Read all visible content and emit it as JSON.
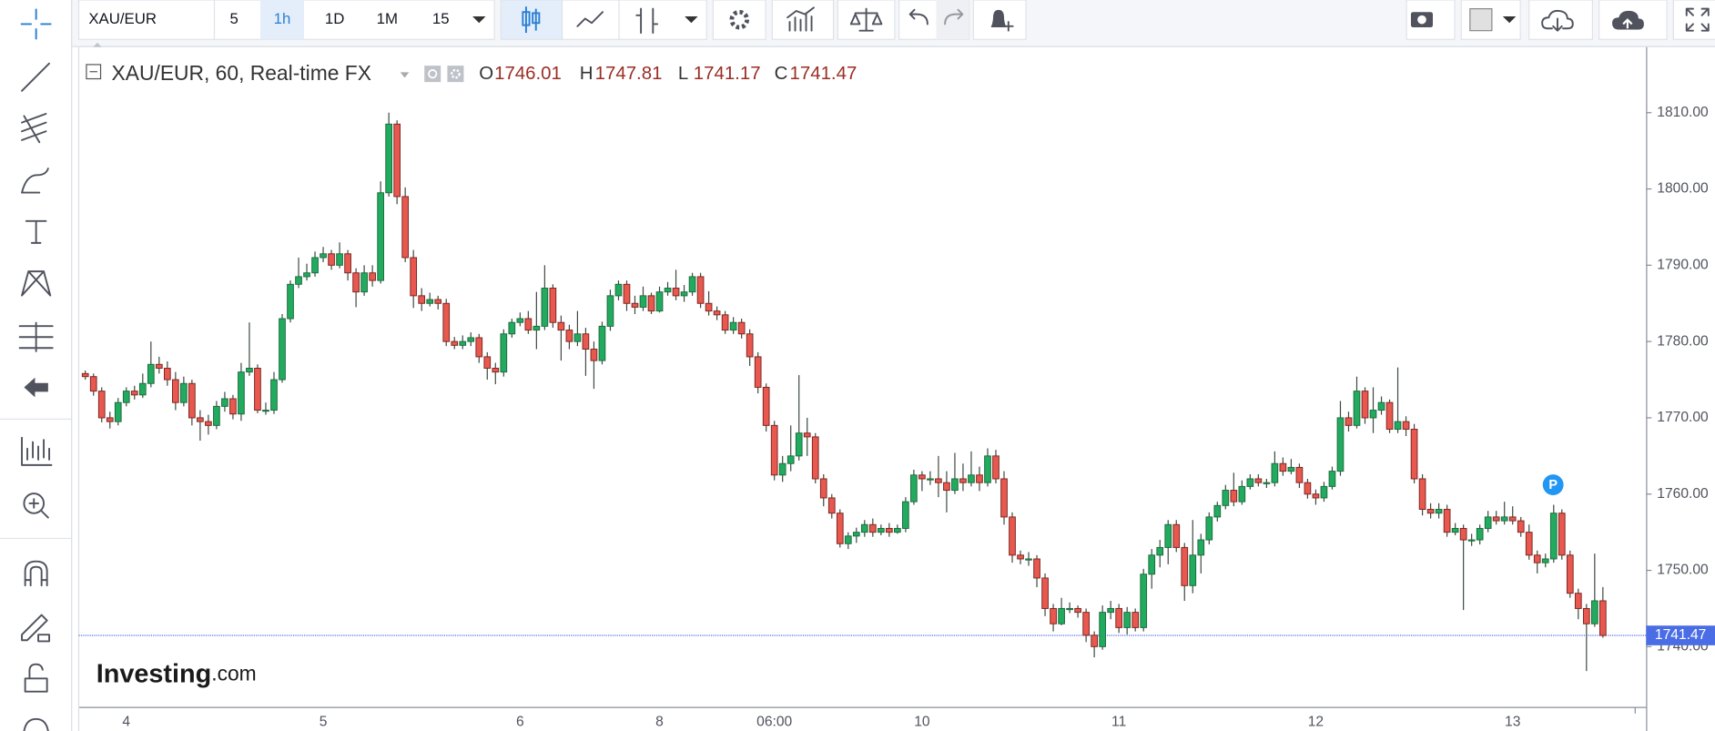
{
  "toolbar": {
    "symbol": "XAU/EUR",
    "intervals": [
      "5",
      "1h",
      "1D",
      "1M",
      "15"
    ]
  },
  "logo": {
    "main": "Investing",
    "suffix": ".com"
  },
  "marker_label": "P",
  "chart_data": {
    "type": "candlestick",
    "title": "XAU/EUR, 60, Real-time FX",
    "ohlc_labels": [
      "O",
      "H",
      "L",
      "C"
    ],
    "up_color": "#22ab5e",
    "down_color": "#e8584f",
    "last_price_color": "#4a6de5",
    "ylim": [
      1732.1,
      1818.6
    ],
    "yticks": [
      {
        "value": 1740,
        "label": "1740.00"
      },
      {
        "value": 1750,
        "label": "1750.00"
      },
      {
        "value": 1760,
        "label": "1760.00"
      },
      {
        "value": 1770,
        "label": "1770.00"
      },
      {
        "value": 1780,
        "label": "1780.00"
      },
      {
        "value": 1790,
        "label": "1790.00"
      },
      {
        "value": 1800,
        "label": "1800.00"
      },
      {
        "value": 1810,
        "label": "1810.00"
      }
    ],
    "grid": false,
    "categories": [
      null,
      null,
      null,
      null,
      null,
      "4",
      null,
      null,
      null,
      null,
      null,
      null,
      null,
      null,
      null,
      null,
      null,
      null,
      null,
      null,
      null,
      null,
      null,
      null,
      null,
      null,
      null,
      null,
      null,
      "5",
      null,
      null,
      null,
      null,
      null,
      null,
      null,
      null,
      null,
      null,
      null,
      null,
      null,
      null,
      null,
      null,
      null,
      null,
      null,
      null,
      null,
      null,
      null,
      "6",
      null,
      null,
      null,
      null,
      null,
      null,
      null,
      null,
      null,
      null,
      null,
      null,
      null,
      null,
      null,
      null,
      "8",
      null,
      null,
      null,
      null,
      null,
      null,
      null,
      null,
      null,
      null,
      null,
      null,
      null,
      "06:00",
      null,
      null,
      null,
      null,
      null,
      null,
      null,
      null,
      null,
      null,
      null,
      null,
      null,
      null,
      null,
      null,
      null,
      "10",
      null,
      null,
      null,
      null,
      null,
      null,
      null,
      null,
      null,
      null,
      null,
      null,
      null,
      null,
      null,
      null,
      null,
      null,
      null,
      null,
      null,
      null,
      null,
      "11",
      null,
      null,
      null,
      null,
      null,
      null,
      null,
      null,
      null,
      null,
      null,
      null,
      null,
      null,
      null,
      null,
      null,
      null,
      null,
      null,
      null,
      null,
      null,
      "12",
      null,
      null,
      null,
      null,
      null,
      null,
      null,
      null,
      null,
      null,
      null,
      null,
      null,
      null,
      null,
      null,
      null,
      null,
      null,
      null,
      null,
      null,
      null,
      "13",
      null,
      null,
      null,
      null,
      null,
      null,
      null,
      null,
      null,
      null,
      null
    ],
    "open": [
      1775.8,
      1775.4,
      1773.5,
      1770,
      1769.5,
      1772,
      1773.5,
      1773,
      1774.5,
      1777,
      1776.5,
      1775,
      1772,
      1774.5,
      1770,
      1769.5,
      1769,
      1771.5,
      1772.5,
      1770.5,
      1776,
      1776.5,
      1771,
      1771,
      1775,
      1783,
      1787.5,
      1788.5,
      1789,
      1791,
      1791.5,
      1790,
      1791.5,
      1789,
      1786.5,
      1789,
      1788,
      1799.5,
      1808.5,
      1799,
      1791,
      1786,
      1785,
      1785.5,
      1785,
      1780,
      1779.5,
      1780,
      1780.5,
      1778,
      1776.5,
      1776,
      1781,
      1782.5,
      1783,
      1781.5,
      1782,
      1787,
      1782.5,
      1781.5,
      1780,
      1781,
      1779,
      1777.5,
      1782,
      1786,
      1787.5,
      1785,
      1784.5,
      1786,
      1784,
      1786.5,
      1787,
      1786,
      1786.5,
      1788.5,
      1785,
      1784,
      1783.5,
      1781.5,
      1782.5,
      1781,
      1778,
      1774,
      1769,
      1762.5,
      1764,
      1765,
      1768,
      1767.5,
      1762,
      1759.5,
      1757.5,
      1753.5,
      1754.5,
      1755,
      1756,
      1755,
      1755.5,
      1755,
      1755.5,
      1759,
      1762.5,
      1762,
      1762,
      1761.5,
      1760.5,
      1762,
      1761.5,
      1762.5,
      1761.5,
      1765,
      1762,
      1757,
      1752,
      1751.5,
      1751.5,
      1749,
      1745,
      1743,
      1745,
      1745,
      1744.5,
      1741.5,
      1740,
      1744.5,
      1745,
      1742.5,
      1744.5,
      1742.5,
      1749.5,
      1752,
      1753,
      1756,
      1753,
      1748,
      1752,
      1754,
      1757,
      1758.5,
      1760.5,
      1759,
      1761,
      1762,
      1761.5,
      1761.5,
      1764,
      1763,
      1763.5,
      1761.5,
      1760,
      1759.5,
      1761,
      1763,
      1770,
      1769,
      1773.5,
      1770,
      1771,
      1772,
      1768.5,
      1769.5,
      1768.5,
      1762,
      1758,
      1757.5,
      1758,
      1755,
      1755.5,
      1754,
      1754,
      1755.5,
      1757,
      1756.5,
      1757,
      1756.5,
      1755,
      1752,
      1751,
      1751.5,
      1757.5,
      1752,
      1747,
      1745,
      1743,
      1746.01
    ],
    "high": [
      1776.2,
      1775.8,
      1774,
      1770.8,
      1772.6,
      1774,
      1774.2,
      1775.8,
      1780,
      1778,
      1777.4,
      1776,
      1775.4,
      1775,
      1771,
      1770.4,
      1772.2,
      1773.4,
      1773,
      1777.2,
      1782.5,
      1777,
      1772,
      1776,
      1783.6,
      1788,
      1791,
      1790.2,
      1791.8,
      1792.4,
      1792,
      1793,
      1792,
      1789.6,
      1790,
      1790,
      1801,
      1810,
      1809,
      1800.2,
      1792,
      1787,
      1786.4,
      1786,
      1785.6,
      1780.6,
      1780.8,
      1781.2,
      1781,
      1778.6,
      1777.2,
      1781.6,
      1783,
      1783.8,
      1784,
      1786.5,
      1790,
      1787.5,
      1783.4,
      1782.2,
      1784,
      1781.8,
      1780,
      1782.6,
      1786.8,
      1788,
      1788,
      1786,
      1787.2,
      1786.4,
      1787.2,
      1787.8,
      1789.4,
      1787.4,
      1789,
      1789,
      1786.6,
      1784.6,
      1784,
      1783.2,
      1783,
      1781.6,
      1778.6,
      1774.5,
      1769.6,
      1765,
      1769,
      1775.6,
      1770,
      1768,
      1762.6,
      1760,
      1758,
      1755,
      1755.6,
      1756.6,
      1756.8,
      1756,
      1756.2,
      1756,
      1759.6,
      1763.2,
      1763,
      1763,
      1765,
      1763,
      1765.4,
      1764,
      1765.6,
      1763.6,
      1766,
      1765.8,
      1763,
      1757.6,
      1752.6,
      1752.4,
      1752,
      1749.6,
      1745.6,
      1746.4,
      1745.8,
      1745.4,
      1745,
      1742,
      1745.4,
      1746,
      1745.6,
      1745.2,
      1745,
      1750.2,
      1752.8,
      1754,
      1756.6,
      1756.6,
      1753.6,
      1756.6,
      1754.8,
      1757.6,
      1759,
      1761.2,
      1762.8,
      1761.8,
      1762.6,
      1762.6,
      1762,
      1765.6,
      1764.8,
      1764.6,
      1764,
      1762,
      1760.6,
      1761.6,
      1763.6,
      1772.2,
      1770.8,
      1775.4,
      1774,
      1774,
      1772.8,
      1772.4,
      1776.6,
      1770.2,
      1769.2,
      1762.6,
      1758.8,
      1758.8,
      1758.6,
      1756.2,
      1756,
      1754.8,
      1756,
      1757.8,
      1757.8,
      1759,
      1758.4,
      1757,
      1756,
      1752.6,
      1752.2,
      1758.6,
      1758,
      1752.6,
      1747.6,
      1745.6,
      1752.2,
      1747.81
    ],
    "low": [
      1775,
      1772.9,
      1769.4,
      1768.6,
      1769,
      1771.5,
      1772.4,
      1772.6,
      1774,
      1775.8,
      1774.2,
      1771,
      1771.5,
      1769,
      1767,
      1767.8,
      1768.5,
      1770.8,
      1769.8,
      1769.6,
      1775.5,
      1770.6,
      1770.4,
      1770.5,
      1774.6,
      1782.5,
      1787,
      1788,
      1788.5,
      1790.4,
      1789.4,
      1789.6,
      1788,
      1784.5,
      1786,
      1787.2,
      1787.6,
      1799,
      1798,
      1790.4,
      1784.4,
      1784,
      1784.6,
      1784.2,
      1779.4,
      1779,
      1779,
      1779.4,
      1777.2,
      1775,
      1774.4,
      1775.4,
      1780.5,
      1782,
      1781,
      1779,
      1781.5,
      1781.8,
      1777.5,
      1779,
      1779.4,
      1775.5,
      1773.8,
      1777,
      1781.4,
      1785.4,
      1784,
      1783.6,
      1784,
      1783.6,
      1783.8,
      1786,
      1785.4,
      1785.2,
      1786,
      1784.4,
      1783.4,
      1782.8,
      1781,
      1781,
      1780.4,
      1776.8,
      1773.2,
      1768.2,
      1761.8,
      1761.6,
      1763,
      1764.4,
      1765,
      1761.4,
      1758.4,
      1756.8,
      1753,
      1752.8,
      1753.6,
      1754.4,
      1754.4,
      1754.6,
      1754.4,
      1754.8,
      1755,
      1758.6,
      1760.4,
      1761.2,
      1759.6,
      1757.6,
      1760,
      1760.4,
      1761,
      1760.4,
      1761,
      1761.4,
      1756,
      1751,
      1750.8,
      1750.6,
      1747.8,
      1744,
      1742,
      1742.8,
      1744.4,
      1743.8,
      1740.6,
      1738.6,
      1739.6,
      1743.6,
      1741.8,
      1741.6,
      1742,
      1742,
      1747.6,
      1750.4,
      1750.8,
      1752.4,
      1746,
      1747,
      1749.6,
      1753.4,
      1756.4,
      1758,
      1758.4,
      1758.6,
      1760.6,
      1761,
      1760.8,
      1761,
      1762.4,
      1762.6,
      1760.8,
      1759.4,
      1758.6,
      1759,
      1760.6,
      1762.4,
      1768.2,
      1768.6,
      1769.2,
      1768,
      1770.4,
      1768,
      1768,
      1767.6,
      1761.4,
      1757.2,
      1756.8,
      1756.8,
      1754.4,
      1754.6,
      1744.8,
      1753.2,
      1753.4,
      1755,
      1756,
      1756,
      1756,
      1754.4,
      1751.4,
      1749.6,
      1750.4,
      1751,
      1751.4,
      1746.4,
      1743.6,
      1736.8,
      1742.6,
      1741.17
    ],
    "close": [
      1775.4,
      1773.5,
      1770,
      1769.5,
      1772,
      1773.5,
      1773,
      1774.5,
      1777,
      1776.5,
      1775,
      1772,
      1774.5,
      1770,
      1769.5,
      1769,
      1771.5,
      1772.5,
      1770.5,
      1776,
      1776.5,
      1771,
      1771,
      1775,
      1783,
      1787.5,
      1788.5,
      1789,
      1791,
      1791.5,
      1790,
      1791.5,
      1789,
      1786.5,
      1789,
      1788,
      1799.5,
      1808.5,
      1799,
      1791,
      1786,
      1785,
      1785.5,
      1785,
      1780,
      1779.5,
      1780,
      1780.5,
      1778,
      1776.5,
      1776,
      1781,
      1782.5,
      1783,
      1781.5,
      1782,
      1787,
      1782.5,
      1781.5,
      1780,
      1781,
      1779,
      1777.5,
      1782,
      1786,
      1787.5,
      1785,
      1784.5,
      1786,
      1784,
      1786.5,
      1787,
      1786,
      1786.5,
      1788.5,
      1785,
      1784,
      1783.5,
      1781.5,
      1782.5,
      1781,
      1778,
      1774,
      1769,
      1762.5,
      1764,
      1765,
      1768,
      1767.5,
      1762,
      1759.5,
      1757.5,
      1753.5,
      1754.5,
      1755,
      1756,
      1755,
      1755.5,
      1755,
      1755.5,
      1759,
      1762.5,
      1762,
      1762,
      1761.5,
      1760.5,
      1762,
      1761.5,
      1762.5,
      1761.5,
      1765,
      1762,
      1757,
      1752,
      1751.5,
      1751.5,
      1749,
      1745,
      1743,
      1745,
      1745,
      1744.5,
      1741.5,
      1740,
      1744.5,
      1745,
      1742.5,
      1744.5,
      1742.5,
      1749.5,
      1752,
      1753,
      1756,
      1753,
      1748,
      1752,
      1754,
      1757,
      1758.5,
      1760.5,
      1759,
      1761,
      1762,
      1761.5,
      1761.5,
      1764,
      1763,
      1763.5,
      1761.5,
      1760,
      1759.5,
      1761,
      1763,
      1770,
      1769,
      1773.5,
      1770,
      1771,
      1772,
      1768.5,
      1769.5,
      1768.5,
      1762,
      1758,
      1757.5,
      1758,
      1755,
      1755.5,
      1754,
      1754,
      1755.5,
      1757,
      1756.5,
      1757,
      1756.5,
      1755,
      1752,
      1751,
      1751.5,
      1757.5,
      1752,
      1747,
      1745,
      1743,
      1746.01,
      1741.47
    ]
  }
}
